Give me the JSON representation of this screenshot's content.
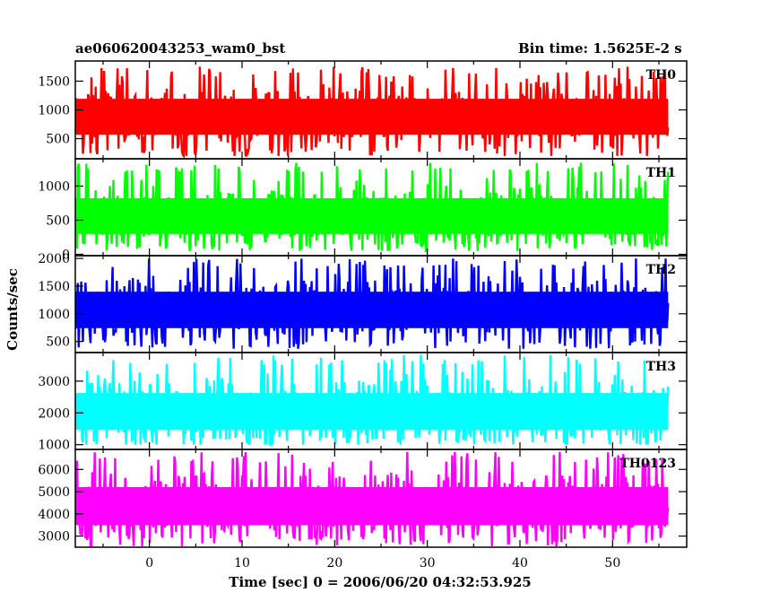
{
  "header": {
    "left_title": "ae060620043253_wam0_bst",
    "right_title": "Bin time: 1.5625E-2 s"
  },
  "chart_data": {
    "type": "line",
    "title": "ae060620043253_wam0_bst",
    "subtitle": "Bin time: 1.5625E-2 s",
    "xlabel": "Time [sec] 0 = 2006/06/20 04:32:53.925",
    "ylabel": "Counts/sec",
    "xlim": [
      -8,
      58
    ],
    "x_ticks": [
      0,
      10,
      20,
      30,
      40,
      50
    ],
    "x_data_range": [
      -8,
      56
    ],
    "bin_time_s": 0.015625,
    "grid": false,
    "panels": [
      {
        "name": "TH0",
        "color": "#ff0000",
        "ylim": [
          150,
          1850
        ],
        "y_ticks": [
          500,
          1000,
          1500
        ],
        "mean": 880,
        "low": 200,
        "high": 1750
      },
      {
        "name": "TH1",
        "color": "#00ff00",
        "ylim": [
          -20,
          1400
        ],
        "y_ticks": [
          0,
          500,
          1000
        ],
        "mean": 560,
        "low": 50,
        "high": 1350
      },
      {
        "name": "TH2",
        "color": "#0000ff",
        "ylim": [
          300,
          2050
        ],
        "y_ticks": [
          500,
          1000,
          1500,
          2000
        ],
        "mean": 1070,
        "low": 370,
        "high": 2000
      },
      {
        "name": "TH3",
        "color": "#00ffff",
        "ylim": [
          850,
          3900
        ],
        "y_ticks": [
          1000,
          2000,
          3000
        ],
        "mean": 2050,
        "low": 1000,
        "high": 3850
      },
      {
        "name": "TH0123",
        "color": "#ff00ff",
        "ylim": [
          2500,
          6900
        ],
        "y_ticks": [
          3000,
          4000,
          5000,
          6000
        ],
        "mean": 4350,
        "low": 2550,
        "high": 6800
      }
    ]
  }
}
